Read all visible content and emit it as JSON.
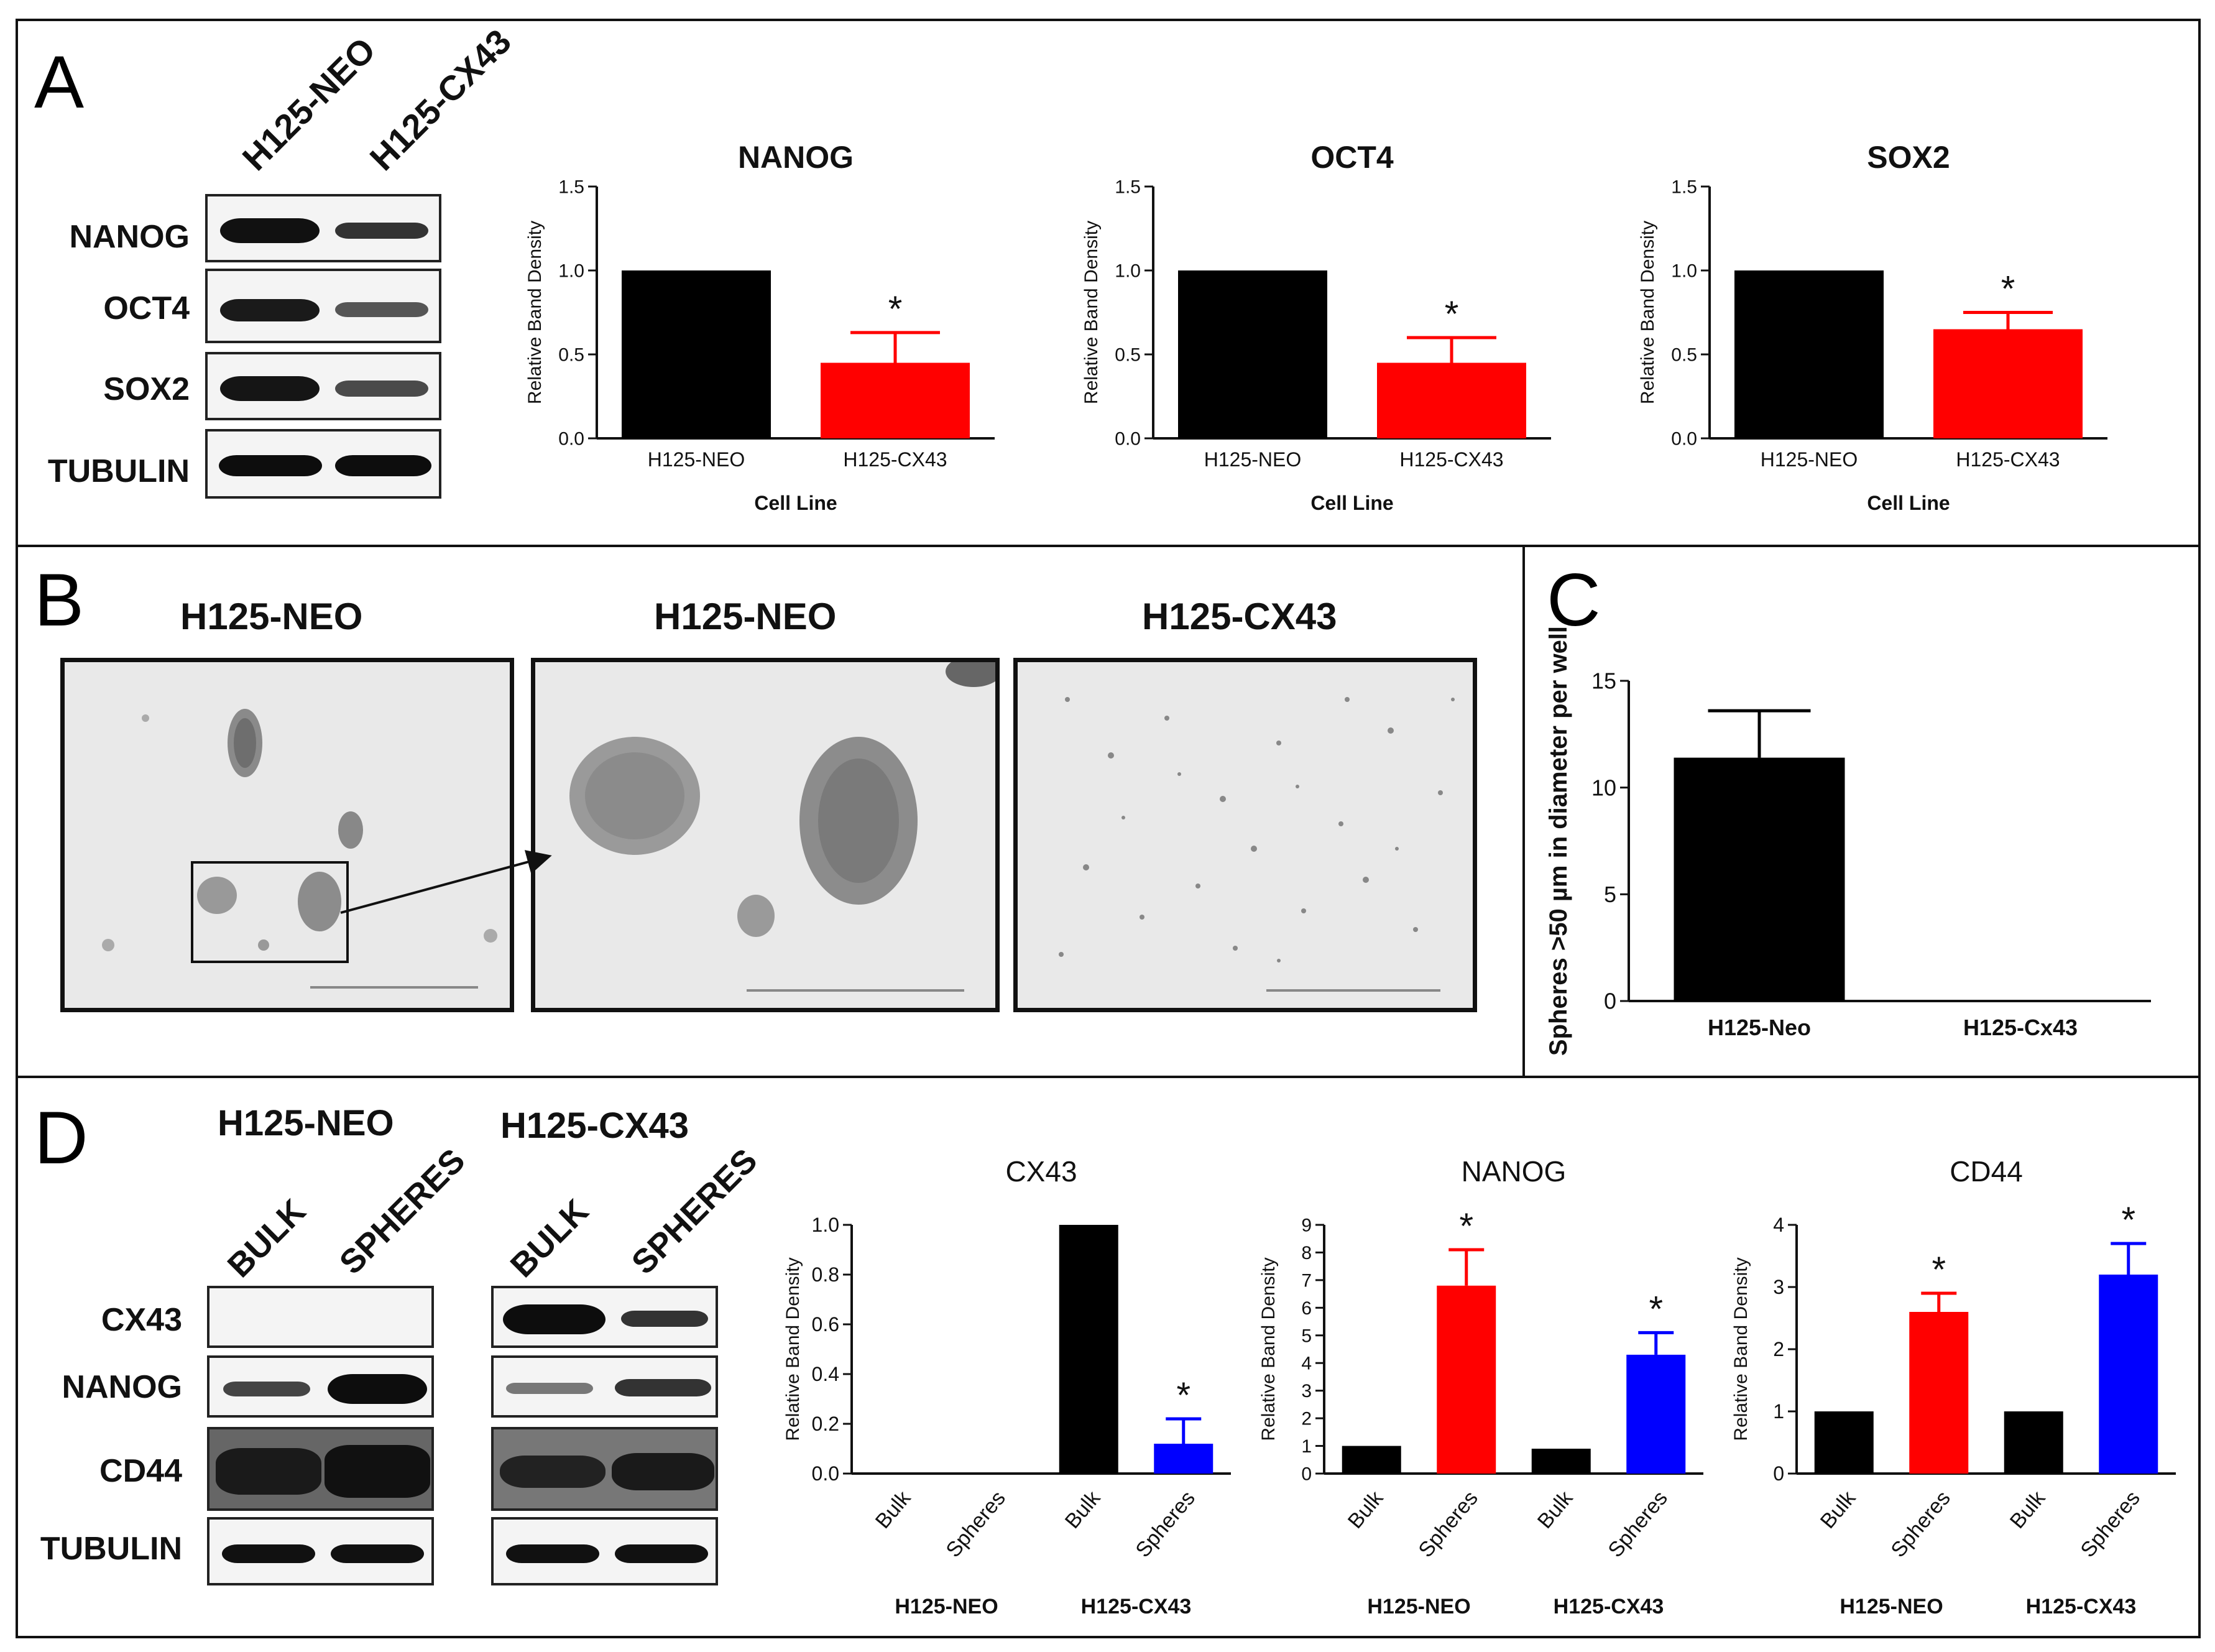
{
  "figure": {
    "panelA": {
      "letter": "A",
      "blot": {
        "lanes": [
          "H125-NEO",
          "H125-CX43"
        ],
        "rows": [
          "NANOG",
          "OCT4",
          "SOX2",
          "TUBULIN"
        ]
      }
    },
    "panelB": {
      "letter": "B",
      "images": [
        "H125-NEO",
        "H125-NEO",
        "H125-CX43"
      ]
    },
    "panelC": {
      "letter": "C"
    },
    "panelD": {
      "letter": "D",
      "blot": {
        "groups": [
          "H125-NEO",
          "H125-CX43"
        ],
        "lanes": [
          "BULK",
          "SPHERES"
        ],
        "rows": [
          "CX43",
          "NANOG",
          "CD44",
          "TUBULIN"
        ]
      }
    }
  },
  "colors": {
    "neo": "#000000",
    "cx43_red": "#ff0000",
    "spheres_blue": "#0000ff"
  },
  "chart_data": [
    {
      "type": "bar",
      "title": "NANOG",
      "categories": [
        "H125-NEO",
        "H125-CX43"
      ],
      "values": [
        1.0,
        0.45
      ],
      "errors": [
        0,
        0.18
      ],
      "significance": [
        "",
        "*"
      ],
      "colors": [
        "#000000",
        "#ff0000"
      ],
      "xlabel": "Cell Line",
      "ylabel": "Relative Band Density",
      "ylim": [
        0,
        1.5
      ],
      "yticks": [
        "0.0",
        "0.5",
        "1.0",
        "1.5"
      ]
    },
    {
      "type": "bar",
      "title": "OCT4",
      "categories": [
        "H125-NEO",
        "H125-CX43"
      ],
      "values": [
        1.0,
        0.45
      ],
      "errors": [
        0,
        0.15
      ],
      "significance": [
        "",
        "*"
      ],
      "colors": [
        "#000000",
        "#ff0000"
      ],
      "xlabel": "Cell Line",
      "ylabel": "Relative Band Density",
      "ylim": [
        0,
        1.5
      ],
      "yticks": [
        "0.0",
        "0.5",
        "1.0",
        "1.5"
      ]
    },
    {
      "type": "bar",
      "title": "SOX2",
      "categories": [
        "H125-NEO",
        "H125-CX43"
      ],
      "values": [
        1.0,
        0.65
      ],
      "errors": [
        0,
        0.1
      ],
      "significance": [
        "",
        "*"
      ],
      "colors": [
        "#000000",
        "#ff0000"
      ],
      "xlabel": "Cell Line",
      "ylabel": "Relative Band Density",
      "ylim": [
        0,
        1.5
      ],
      "yticks": [
        "0.0",
        "0.5",
        "1.0",
        "1.5"
      ]
    },
    {
      "type": "bar",
      "title": "",
      "categories": [
        "H125-Neo",
        "H125-Cx43"
      ],
      "values": [
        11.4,
        0
      ],
      "errors": [
        2.2,
        0
      ],
      "significance": [
        "",
        ""
      ],
      "colors": [
        "#000000",
        "#000000"
      ],
      "xlabel": "",
      "ylabel": "Spheres >50 µm in diameter per well",
      "ylim": [
        0,
        15
      ],
      "yticks": [
        "0",
        "5",
        "10",
        "15"
      ]
    },
    {
      "type": "bar",
      "title": "CX43",
      "categories": [
        "Bulk",
        "Spheres",
        "Bulk",
        "Spheres"
      ],
      "groups": [
        "H125-NEO",
        "H125-CX43"
      ],
      "values": [
        0,
        0,
        1.0,
        0.12
      ],
      "errors": [
        0,
        0,
        0,
        0.1
      ],
      "significance": [
        "",
        "",
        "",
        "*"
      ],
      "colors": [
        "#000000",
        "#ff0000",
        "#000000",
        "#0000ff"
      ],
      "ylabel": "Relative Band Density",
      "ylim": [
        0,
        1.0
      ],
      "yticks": [
        "0.0",
        "0.2",
        "0.4",
        "0.6",
        "0.8",
        "1.0"
      ]
    },
    {
      "type": "bar",
      "title": "NANOG",
      "categories": [
        "Bulk",
        "Spheres",
        "Bulk",
        "Spheres"
      ],
      "groups": [
        "H125-NEO",
        "H125-CX43"
      ],
      "values": [
        1.0,
        6.8,
        0.9,
        4.3
      ],
      "errors": [
        0,
        1.3,
        0,
        0.8
      ],
      "significance": [
        "",
        "*",
        "",
        "*"
      ],
      "colors": [
        "#000000",
        "#ff0000",
        "#000000",
        "#0000ff"
      ],
      "ylabel": "Relative Band Density",
      "ylim": [
        0,
        9
      ],
      "yticks": [
        "0",
        "1",
        "2",
        "3",
        "4",
        "5",
        "6",
        "7",
        "8",
        "9"
      ]
    },
    {
      "type": "bar",
      "title": "CD44",
      "categories": [
        "Bulk",
        "Spheres",
        "Bulk",
        "Spheres"
      ],
      "groups": [
        "H125-NEO",
        "H125-CX43"
      ],
      "values": [
        1.0,
        2.6,
        1.0,
        3.2
      ],
      "errors": [
        0,
        0.3,
        0,
        0.5
      ],
      "significance": [
        "",
        "*",
        "",
        "*"
      ],
      "colors": [
        "#000000",
        "#ff0000",
        "#000000",
        "#0000ff"
      ],
      "ylabel": "Relative Band Density",
      "ylim": [
        0,
        4
      ],
      "yticks": [
        "0",
        "1",
        "2",
        "3",
        "4"
      ]
    }
  ]
}
